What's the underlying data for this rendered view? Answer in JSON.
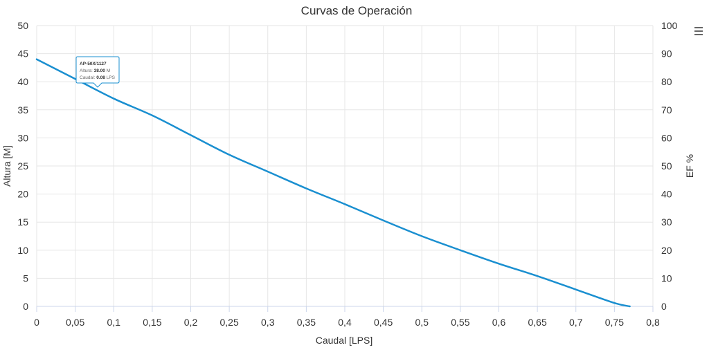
{
  "chart_data": {
    "type": "line",
    "title": "Curvas de Operación",
    "xlabel": "Caudal [LPS]",
    "ylabel": "Altura [M]",
    "y2label": "EF %",
    "xlim": [
      0,
      0.8
    ],
    "ylim": [
      0,
      50
    ],
    "y2lim": [
      0,
      100
    ],
    "x_ticks": [
      "0",
      "0,05",
      "0,1",
      "0,15",
      "0,2",
      "0,25",
      "0,3",
      "0,35",
      "0,4",
      "0,45",
      "0,5",
      "0,55",
      "0,6",
      "0,65",
      "0,7",
      "0,75",
      "0,8"
    ],
    "y_ticks": [
      "0",
      "5",
      "10",
      "15",
      "20",
      "25",
      "30",
      "35",
      "40",
      "45",
      "50"
    ],
    "y2_ticks": [
      "0",
      "10",
      "20",
      "30",
      "40",
      "50",
      "60",
      "70",
      "80",
      "90",
      "100"
    ],
    "series": [
      {
        "name": "AP-50X/1127",
        "color": "#1a8fd0",
        "x": [
          0,
          0.05,
          0.1,
          0.15,
          0.2,
          0.25,
          0.3,
          0.35,
          0.4,
          0.45,
          0.5,
          0.55,
          0.6,
          0.65,
          0.7,
          0.75,
          0.77
        ],
        "y": [
          44,
          40.5,
          37,
          34,
          30.5,
          27,
          24,
          21,
          18.2,
          15.3,
          12.5,
          10,
          7.6,
          5.4,
          3,
          0.6,
          0
        ]
      }
    ],
    "tooltip": {
      "series": "AP-50X/1127",
      "altura_label": "Altura:",
      "altura_value": "38.00",
      "altura_unit": "M",
      "caudal_label": "Caudal:",
      "caudal_value": "0.08",
      "caudal_unit": "LPS"
    }
  },
  "menu_icon": "hamburger-menu-icon"
}
